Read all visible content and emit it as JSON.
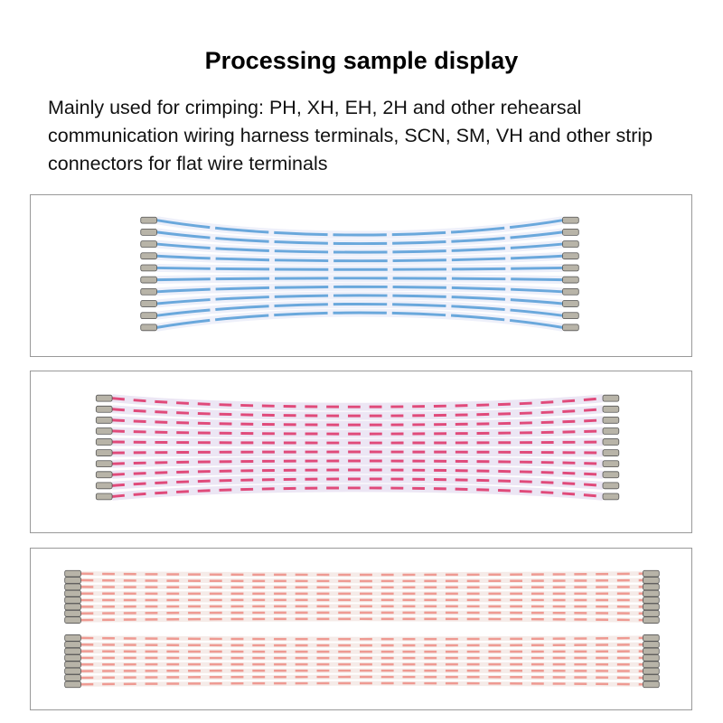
{
  "title": "Processing sample display",
  "description": "Mainly used for crimping: PH, XH, EH, 2H and other rehearsal communication wiring harness terminals, SCN, SM, VH and other strip connectors for flat wire terminals",
  "samples": [
    {
      "wire_color": "#6aa8dc",
      "base_color": "#eef0fa",
      "wires": 10
    },
    {
      "wire_color": "#e04a7a",
      "base_color": "#ece6f4",
      "wires": 10
    },
    {
      "wire_color": "#ee9a92",
      "base_color": "#f5ebe8",
      "wires": 16
    }
  ]
}
